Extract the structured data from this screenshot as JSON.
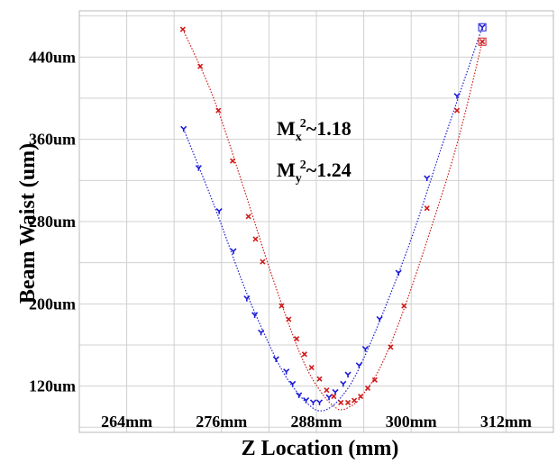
{
  "chart_data": {
    "type": "scatter",
    "title": "",
    "xlabel": "Z Location (mm)",
    "ylabel": "Beam Waist (um)",
    "xlim": [
      258,
      318
    ],
    "ylim": [
      75,
      485
    ],
    "x_ticks": [
      {
        "value": 264,
        "label": "264mm"
      },
      {
        "value": 276,
        "label": "276mm"
      },
      {
        "value": 288,
        "label": "288mm"
      },
      {
        "value": 300,
        "label": "300mm"
      },
      {
        "value": 312,
        "label": "312mm"
      }
    ],
    "y_ticks": [
      {
        "value": 120,
        "label": "120um"
      },
      {
        "value": 200,
        "label": "200um"
      },
      {
        "value": 280,
        "label": "280um"
      },
      {
        "value": 360,
        "label": "360um"
      },
      {
        "value": 440,
        "label": "440um"
      }
    ],
    "grid": true,
    "annotations": [
      {
        "base": "M",
        "sub": "x",
        "sup": "2",
        "text": "~1.18"
      },
      {
        "base": "M",
        "sub": "y",
        "sup": "2",
        "text": "~1.24"
      }
    ],
    "series": [
      {
        "color": "#1a1ad6",
        "marker": "y-shape",
        "points": [
          [
            271.2,
            370
          ],
          [
            273.1,
            332
          ],
          [
            275.7,
            290
          ],
          [
            277.5,
            251
          ],
          [
            279.2,
            205
          ],
          [
            280.2,
            189
          ],
          [
            281.0,
            172
          ],
          [
            282.9,
            146
          ],
          [
            284.2,
            134
          ],
          [
            285.0,
            122
          ],
          [
            285.8,
            111
          ],
          [
            286.7,
            106
          ],
          [
            287.6,
            104
          ],
          [
            288.4,
            104
          ],
          [
            289.6,
            109
          ],
          [
            290.4,
            114
          ],
          [
            291.4,
            122
          ],
          [
            292.0,
            131
          ],
          [
            293.4,
            140
          ],
          [
            294.2,
            156
          ],
          [
            296.0,
            185
          ],
          [
            298.4,
            230
          ],
          [
            302.0,
            322
          ],
          [
            305.8,
            402
          ],
          [
            309.0,
            469
          ]
        ],
        "fit": [
          [
            271.2,
            370
          ],
          [
            275.0,
            297
          ],
          [
            279.0,
            214
          ],
          [
            282.0,
            161
          ],
          [
            284.0,
            131
          ],
          [
            286.0,
            110
          ],
          [
            287.5,
            99
          ],
          [
            288.4,
            96
          ],
          [
            289.5,
            98
          ],
          [
            291.0,
            108
          ],
          [
            293.0,
            131
          ],
          [
            296.0,
            183
          ],
          [
            300.0,
            263
          ],
          [
            304.0,
            356
          ],
          [
            309.0,
            469
          ]
        ]
      },
      {
        "color": "#d01a1a",
        "marker": "x",
        "points": [
          [
            271.1,
            467
          ],
          [
            273.3,
            431
          ],
          [
            275.6,
            388
          ],
          [
            277.4,
            339
          ],
          [
            279.4,
            285
          ],
          [
            280.3,
            263
          ],
          [
            281.2,
            241
          ],
          [
            283.6,
            198
          ],
          [
            284.5,
            185
          ],
          [
            285.5,
            166
          ],
          [
            286.5,
            151
          ],
          [
            287.4,
            138
          ],
          [
            288.4,
            127
          ],
          [
            289.3,
            116
          ],
          [
            290.2,
            110
          ],
          [
            291.1,
            104
          ],
          [
            292.0,
            104
          ],
          [
            292.8,
            106
          ],
          [
            293.6,
            110
          ],
          [
            294.5,
            118
          ],
          [
            295.4,
            126
          ],
          [
            297.4,
            158
          ],
          [
            299.1,
            198
          ],
          [
            302.0,
            293
          ],
          [
            305.8,
            388
          ],
          [
            309.0,
            455
          ]
        ],
        "fit": [
          [
            271.1,
            467
          ],
          [
            275.0,
            400
          ],
          [
            279.0,
            308
          ],
          [
            282.0,
            236
          ],
          [
            285.0,
            170
          ],
          [
            287.0,
            134
          ],
          [
            289.0,
            110
          ],
          [
            290.3,
            100
          ],
          [
            291.0,
            97
          ],
          [
            292.0,
            99
          ],
          [
            293.5,
            108
          ],
          [
            296.0,
            137
          ],
          [
            299.0,
            193
          ],
          [
            303.0,
            285
          ],
          [
            306.0,
            361
          ],
          [
            309.0,
            455
          ]
        ]
      }
    ]
  }
}
